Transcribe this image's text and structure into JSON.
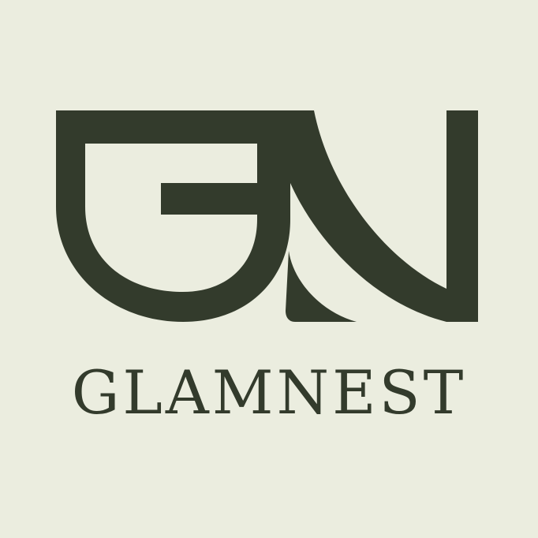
{
  "brand": {
    "name": "GLAMNEST",
    "monogram_icon": "gn-monogram-icon"
  },
  "colors": {
    "background": "#ebeddf",
    "ink": "#333b2c"
  }
}
